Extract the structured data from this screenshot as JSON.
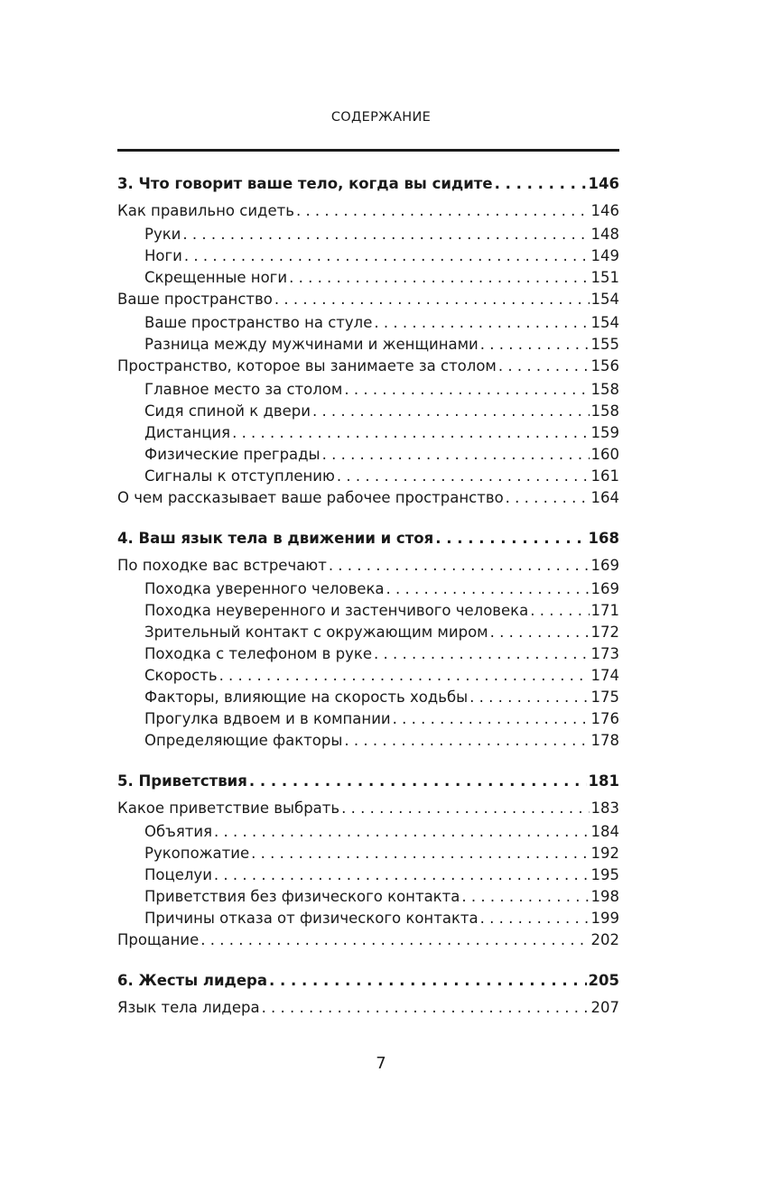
{
  "header": {
    "title": "СОДЕРЖАНИЕ"
  },
  "toc": [
    {
      "level": "ch",
      "title": "3. Что говорит ваше тело, когда вы сидите",
      "page": "146"
    },
    {
      "level": "l0",
      "title": "Как правильно сидеть",
      "page": "146"
    },
    {
      "level": "l1",
      "title": "Руки",
      "page": "148"
    },
    {
      "level": "l1",
      "title": "Ноги",
      "page": "149"
    },
    {
      "level": "l1",
      "title": "Скрещенные ноги",
      "page": "151"
    },
    {
      "level": "l0",
      "title": "Ваше пространство",
      "page": "154"
    },
    {
      "level": "l1",
      "title": "Ваше пространство на стуле",
      "page": "154"
    },
    {
      "level": "l1",
      "title": "Разница между мужчинами и женщинами",
      "page": "155"
    },
    {
      "level": "l0",
      "title": "Пространство, которое вы занимаете за столом",
      "page": "156"
    },
    {
      "level": "l1",
      "title": "Главное место за столом",
      "page": "158"
    },
    {
      "level": "l1",
      "title": "Сидя спиной к двери",
      "page": "158"
    },
    {
      "level": "l1",
      "title": "Дистанция",
      "page": "159"
    },
    {
      "level": "l1",
      "title": "Физические преграды",
      "page": "160"
    },
    {
      "level": "l1",
      "title": "Сигналы к отступлению",
      "page": "161"
    },
    {
      "level": "l0",
      "title": "О чем рассказывает ваше рабочее пространство",
      "page": "164"
    },
    {
      "level": "ch",
      "title": "4. Ваш язык тела в движении и стоя",
      "page": "168"
    },
    {
      "level": "l0",
      "title": "По походке вас встречают",
      "page": "169"
    },
    {
      "level": "l1",
      "title": "Походка уверенного человека",
      "page": "169"
    },
    {
      "level": "l1",
      "title": "Походка неуверенного и застенчивого человека",
      "page": "171"
    },
    {
      "level": "l1",
      "title": "Зрительный контакт с окружающим миром",
      "page": "172"
    },
    {
      "level": "l1",
      "title": "Походка с телефоном в руке",
      "page": "173"
    },
    {
      "level": "l1",
      "title": "Скорость",
      "page": "174"
    },
    {
      "level": "l1",
      "title": "Факторы, влияющие на скорость ходьбы",
      "page": "175"
    },
    {
      "level": "l1",
      "title": "Прогулка вдвоем и в компании",
      "page": "176"
    },
    {
      "level": "l1",
      "title": "Определяющие факторы",
      "page": "178"
    },
    {
      "level": "ch",
      "title": "5. Приветствия",
      "page": "181"
    },
    {
      "level": "l0",
      "title": "Какое приветствие выбрать",
      "page": "183"
    },
    {
      "level": "l1",
      "title": "Объятия",
      "page": "184"
    },
    {
      "level": "l1",
      "title": "Рукопожатие",
      "page": "192"
    },
    {
      "level": "l1",
      "title": "Поцелуи",
      "page": "195"
    },
    {
      "level": "l1",
      "title": "Приветствия без физического контакта",
      "page": "198"
    },
    {
      "level": "l1",
      "title": "Причины отказа от физического контакта",
      "page": "199"
    },
    {
      "level": "l0",
      "title": "Прощание",
      "page": "202"
    },
    {
      "level": "ch",
      "title": "6. Жесты лидера",
      "page": "205"
    },
    {
      "level": "l0",
      "title": "Язык тела лидера",
      "page": "207"
    }
  ],
  "footer": {
    "page_number": "7"
  }
}
